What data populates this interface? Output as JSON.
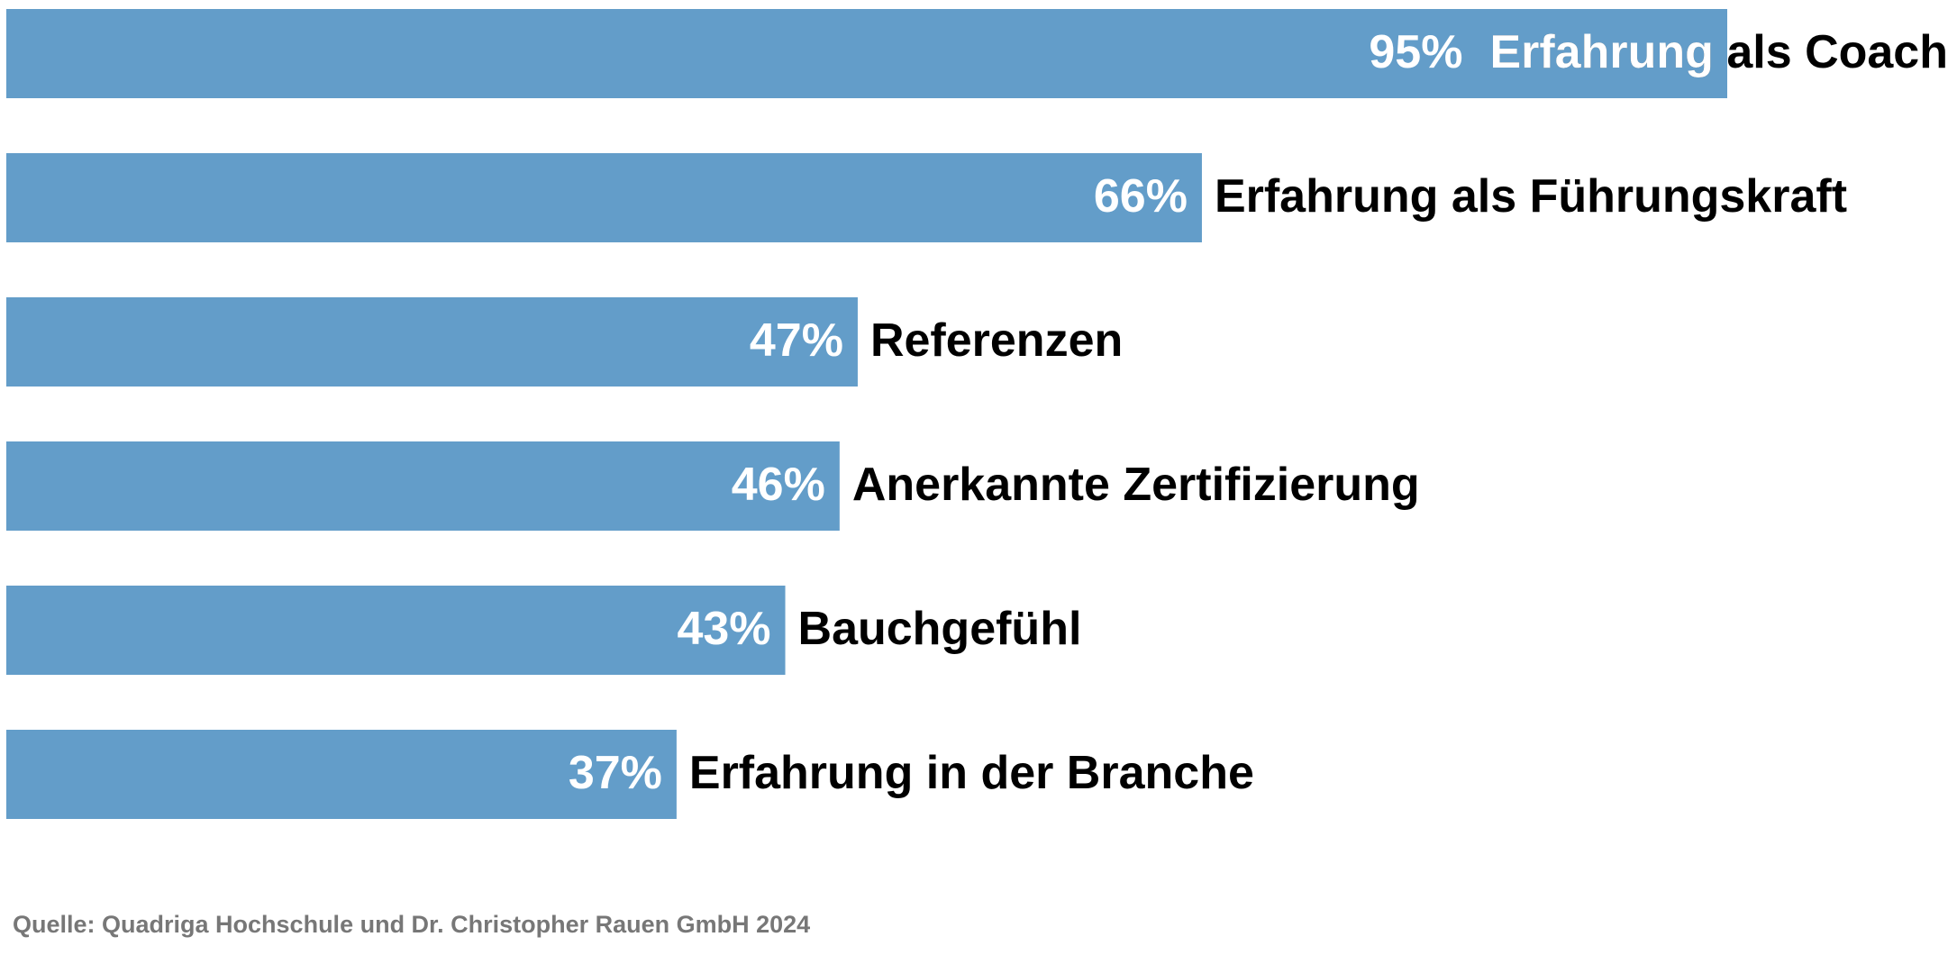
{
  "chart_data": {
    "type": "bar",
    "orientation": "horizontal",
    "categories": [
      "Erfahrung als Coach",
      "Erfahrung als Führungskraft",
      "Referenzen",
      "Anerkannte Zertifizierung",
      "Bauchgefühl",
      "Erfahrung in der Branche"
    ],
    "values": [
      95,
      66,
      47,
      46,
      43,
      37
    ],
    "value_labels": [
      "95%",
      "66%",
      "47%",
      "46%",
      "43%",
      "37%"
    ],
    "color": "#639dc9",
    "source": "Quelle: Quadriga Hochschule und Dr. Christopher Rauen GmbH 2024"
  }
}
